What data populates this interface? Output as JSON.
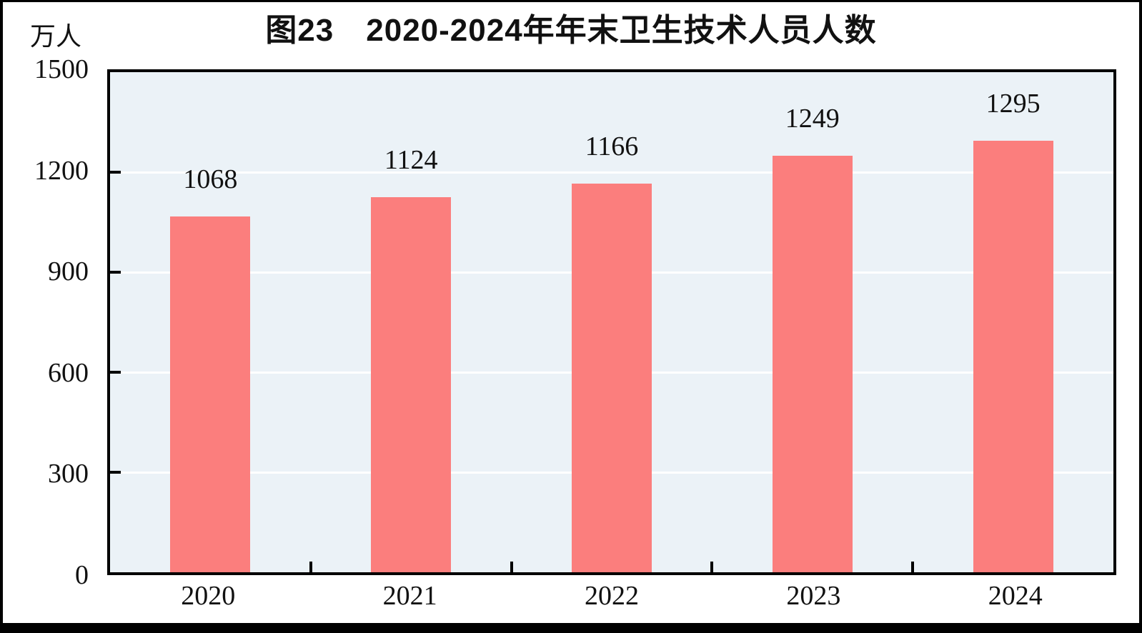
{
  "chart_data": {
    "type": "bar",
    "title": "图23　2020-2024年年末卫生技术人员人数",
    "unit_label": "万人",
    "categories": [
      "2020",
      "2021",
      "2022",
      "2023",
      "2024"
    ],
    "values": [
      1068,
      1124,
      1166,
      1249,
      1295
    ],
    "ylim": [
      0,
      1500
    ],
    "yticks": [
      0,
      300,
      600,
      900,
      1200,
      1500
    ],
    "xlabel": "",
    "ylabel": "万人",
    "grid": true,
    "legend_position": "none",
    "colors": {
      "bar": "#FB7E7D",
      "plot_background": "#EBF2F7",
      "gridline": "#FFFFFF",
      "axis": "#000000",
      "text": "#111111",
      "frame": "#000000"
    }
  }
}
